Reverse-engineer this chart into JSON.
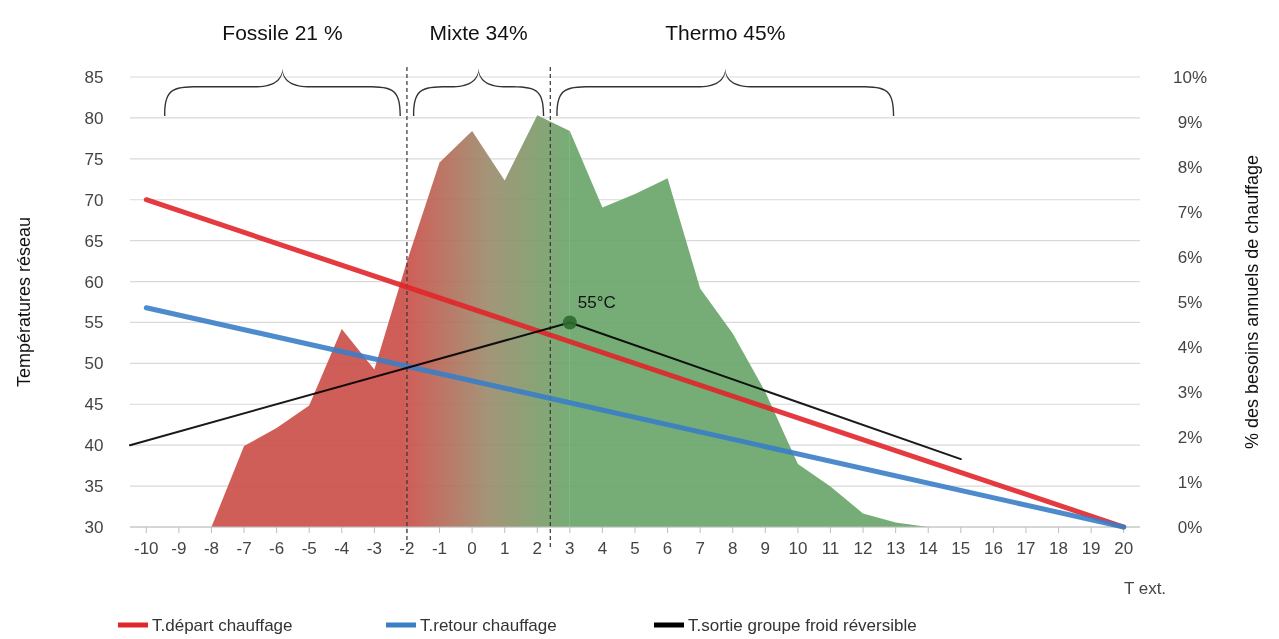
{
  "chart_data": {
    "type": "line",
    "ylabel": "Températures réseau",
    "y2label": "% des besoins annuels de chauffage",
    "xlabel": "T ext.",
    "xlim": [
      -10.5,
      20.5
    ],
    "xticks": [
      -10,
      -9,
      -8,
      -7,
      -6,
      -5,
      -4,
      -3,
      -2,
      -1,
      0,
      1,
      2,
      3,
      4,
      5,
      6,
      7,
      8,
      9,
      10,
      11,
      12,
      13,
      14,
      15,
      16,
      17,
      18,
      19,
      20
    ],
    "ylim": [
      30,
      85
    ],
    "yticks": [
      30,
      35,
      40,
      45,
      50,
      55,
      60,
      65,
      70,
      75,
      80,
      85
    ],
    "y2lim": [
      0,
      10
    ],
    "y2ticks": [
      {
        "value": 0,
        "label": "0%"
      },
      {
        "value": 1,
        "label": "1%"
      },
      {
        "value": 2,
        "label": "2%"
      },
      {
        "value": 3,
        "label": "3%"
      },
      {
        "value": 4,
        "label": "4%"
      },
      {
        "value": 5,
        "label": "5%"
      },
      {
        "value": 6,
        "label": "6%"
      },
      {
        "value": 7,
        "label": "7%"
      },
      {
        "value": 8,
        "label": "8%"
      },
      {
        "value": 9,
        "label": "9%"
      },
      {
        "value": 10,
        "label": "10%"
      }
    ],
    "grid": "y",
    "legend": "bottom",
    "series": [
      {
        "type": "area",
        "axis": "y2",
        "color": "#cc504a",
        "x": [
          -8,
          -7,
          -6,
          -5,
          -4,
          -3,
          -2
        ],
        "values": [
          0,
          1.8,
          2.2,
          2.7,
          4.4,
          3.5,
          5.9
        ]
      },
      {
        "type": "area",
        "axis": "y2",
        "color": "#9c8c6c",
        "x": [
          -2,
          -1,
          0,
          1,
          2,
          3
        ],
        "values": [
          5.9,
          8.1,
          8.8,
          7.7,
          9.15,
          8.8
        ]
      },
      {
        "type": "area",
        "axis": "y2",
        "color": "#6aa66a",
        "x": [
          3,
          4,
          5,
          6,
          7,
          8,
          9,
          10,
          11,
          12,
          13,
          14
        ],
        "values": [
          8.8,
          7.1,
          7.4,
          7.75,
          5.3,
          4.3,
          3.0,
          1.4,
          0.9,
          0.3,
          0.1,
          0
        ]
      },
      {
        "name": "T.départ chauffage",
        "color": "#e0262a",
        "x": [
          -10,
          20
        ],
        "values": [
          70,
          30
        ]
      },
      {
        "name": "T.retour chauffage",
        "color": "#3a7ec6",
        "x": [
          -10,
          20
        ],
        "values": [
          56.8,
          30
        ]
      },
      {
        "name": "T.sortie groupe froid réversible",
        "color": "#000000",
        "x": [
          -10.5,
          3,
          15
        ],
        "values": [
          40,
          55,
          38.3
        ]
      }
    ],
    "ref_lines": [
      {
        "axis": "x",
        "value": -2,
        "line_style": "dashed",
        "color": "#333333"
      },
      {
        "axis": "x",
        "value": 2.4,
        "line_style": "dashed",
        "color": "#333333"
      }
    ],
    "annotations": [
      "Fossile 21 %",
      "Mixte 34%",
      "Thermo 45%",
      {
        "text": "55°C",
        "x": 3,
        "y": 55
      }
    ]
  }
}
